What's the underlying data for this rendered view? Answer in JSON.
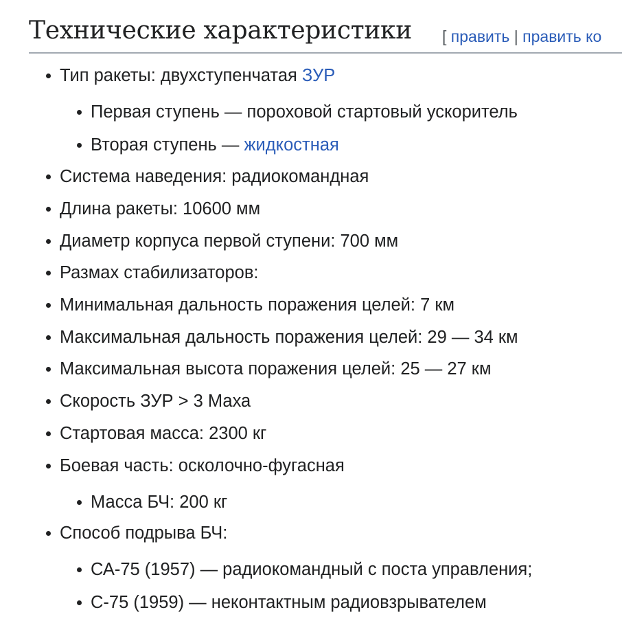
{
  "heading": {
    "title": "Технические характеристики",
    "bracket_open": "[",
    "edit": "править",
    "separator": "|",
    "edit_code": "править ко"
  },
  "items": [
    {
      "text": "Тип ракеты: двухступенчатая ",
      "link": "ЗУР"
    },
    {
      "text": "Первая ступень — пороховой стартовый ускоритель"
    },
    {
      "text": "Вторая ступень — ",
      "link": "жидкостная"
    },
    {
      "text": "Система наведения: радиокомандная"
    },
    {
      "text": "Длина ракеты: 10600 мм"
    },
    {
      "text": "Диаметр корпуса первой ступени: 700 мм"
    },
    {
      "text": "Размах стабилизаторов:"
    },
    {
      "text": "Минимальная дальность поражения целей: 7 км"
    },
    {
      "text": "Максимальная дальность поражения целей: 29 — 34 км"
    },
    {
      "text": "Максимальная высота поражения целей: 25 — 27 км"
    },
    {
      "text": "Скорость ЗУР > 3 Маха"
    },
    {
      "text": "Стартовая масса: 2300 кг"
    },
    {
      "text": "Боевая часть: осколочно-фугасная"
    },
    {
      "text": "Масса БЧ: 200 кг"
    },
    {
      "text": "Способ подрыва БЧ:"
    },
    {
      "text": "СА-75 (1957) — радиокомандный с поста управления;"
    },
    {
      "text": "С-75 (1959) — неконтактным радиовзрывателем"
    }
  ]
}
